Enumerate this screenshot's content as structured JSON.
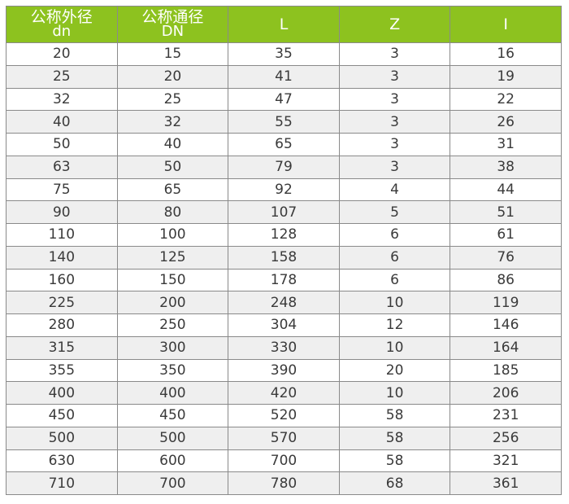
{
  "header_color": "#8dc21f",
  "columns": [
    {
      "label": "公称外径",
      "sub": "dn"
    },
    {
      "label": "公称通径",
      "sub": "DN"
    },
    {
      "label": "L",
      "sub": ""
    },
    {
      "label": "Z",
      "sub": ""
    },
    {
      "label": "I",
      "sub": ""
    }
  ],
  "rows": [
    [
      "20",
      "15",
      "35",
      "3",
      "16"
    ],
    [
      "25",
      "20",
      "41",
      "3",
      "19"
    ],
    [
      "32",
      "25",
      "47",
      "3",
      "22"
    ],
    [
      "40",
      "32",
      "55",
      "3",
      "26"
    ],
    [
      "50",
      "40",
      "65",
      "3",
      "31"
    ],
    [
      "63",
      "50",
      "79",
      "3",
      "38"
    ],
    [
      "75",
      "65",
      "92",
      "4",
      "44"
    ],
    [
      "90",
      "80",
      "107",
      "5",
      "51"
    ],
    [
      "110",
      "100",
      "128",
      "6",
      "61"
    ],
    [
      "140",
      "125",
      "158",
      "6",
      "76"
    ],
    [
      "160",
      "150",
      "178",
      "6",
      "86"
    ],
    [
      "225",
      "200",
      "248",
      "10",
      "119"
    ],
    [
      "280",
      "250",
      "304",
      "12",
      "146"
    ],
    [
      "315",
      "300",
      "330",
      "10",
      "164"
    ],
    [
      "355",
      "350",
      "390",
      "20",
      "185"
    ],
    [
      "400",
      "400",
      "420",
      "10",
      "206"
    ],
    [
      "450",
      "450",
      "520",
      "58",
      "231"
    ],
    [
      "500",
      "500",
      "570",
      "58",
      "256"
    ],
    [
      "630",
      "600",
      "700",
      "58",
      "321"
    ],
    [
      "710",
      "700",
      "780",
      "68",
      "361"
    ]
  ]
}
